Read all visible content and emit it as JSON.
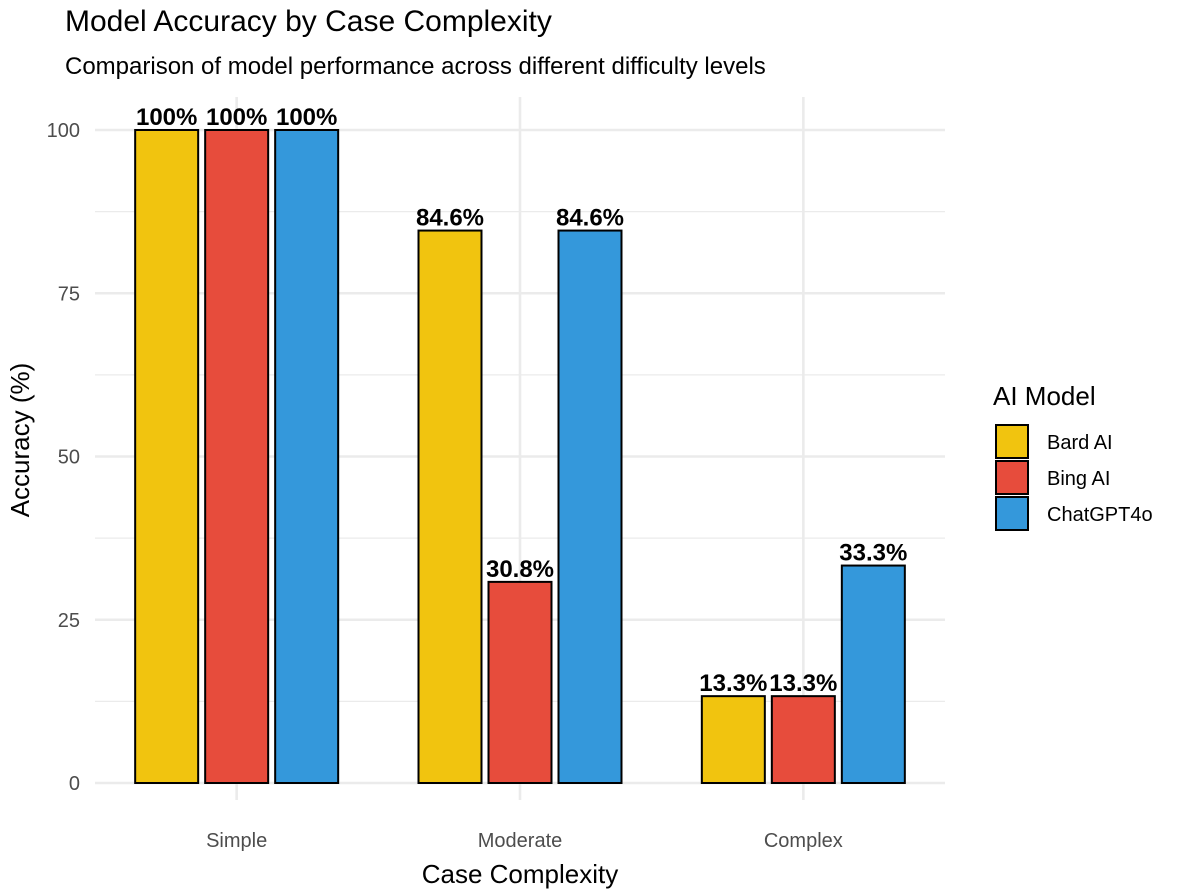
{
  "chart_data": {
    "type": "bar",
    "title": "Model Accuracy by Case Complexity",
    "subtitle": "Comparison of model performance across different difficulty levels",
    "xlabel": "Case Complexity",
    "ylabel": "Accuracy (%)",
    "categories": [
      "Simple",
      "Moderate",
      "Complex"
    ],
    "ylim": [
      0,
      105
    ],
    "yticks": [
      0,
      25,
      50,
      75,
      100
    ],
    "grid": true,
    "legend": {
      "title": "AI Model",
      "placement": "right"
    },
    "series": [
      {
        "name": "Bard AI",
        "color": "#F1C40F",
        "values": [
          100,
          84.6,
          13.3
        ],
        "labels": [
          "100%",
          "84.6%",
          "13.3%"
        ]
      },
      {
        "name": "Bing AI",
        "color": "#E74C3C",
        "values": [
          100,
          30.8,
          13.3
        ],
        "labels": [
          "100%",
          "30.8%",
          "13.3%"
        ]
      },
      {
        "name": "ChatGPT4o",
        "color": "#3498DB",
        "values": [
          100,
          84.6,
          33.3
        ],
        "labels": [
          "100%",
          "84.6%",
          "33.3%"
        ]
      }
    ]
  }
}
